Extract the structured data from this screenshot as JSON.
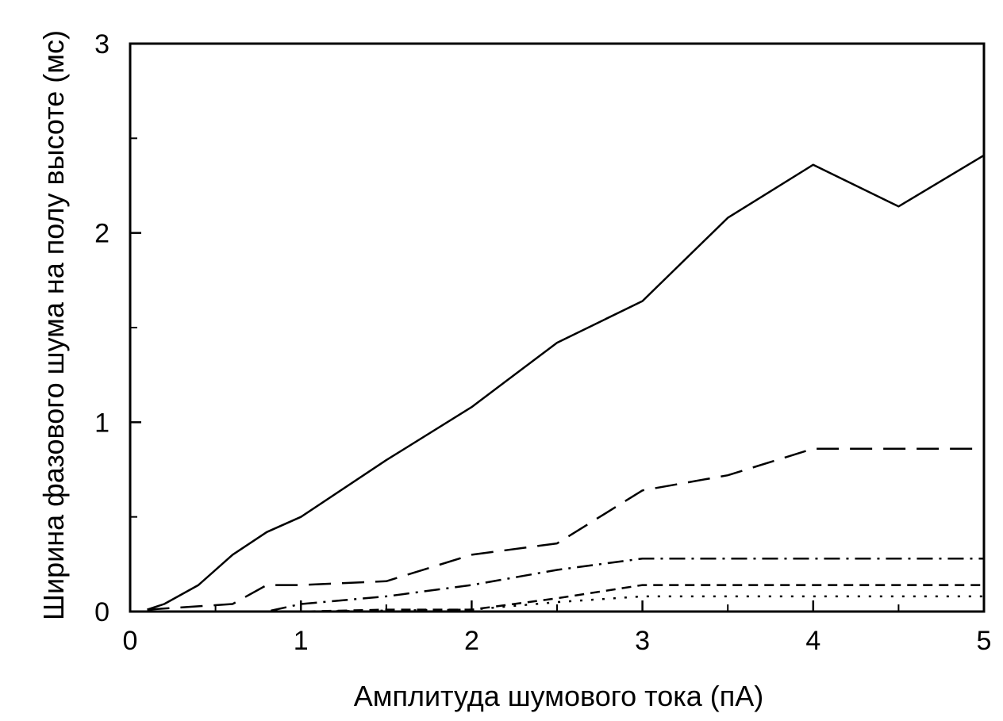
{
  "chart_data": {
    "type": "line",
    "title": "",
    "xlabel": "Амплитуда шумового тока (пА)",
    "ylabel": "Ширина фазового шума на полу высоте (мс)",
    "xlim": [
      0,
      5
    ],
    "ylim": [
      0,
      3
    ],
    "x_ticks": [
      0,
      1,
      2,
      3,
      4,
      5
    ],
    "x_tick_labels": [
      "0",
      "1",
      "2",
      "3",
      "4",
      "5"
    ],
    "x_minor_ticks": [
      0.5,
      1.5,
      2.5,
      3.5,
      4.5
    ],
    "y_ticks": [
      0,
      1,
      2,
      3
    ],
    "y_tick_labels": [
      "0",
      "1",
      "2",
      "3"
    ],
    "y_minor_ticks": [
      0.5,
      1.5,
      2.5
    ],
    "grid": false,
    "legend": "none",
    "series": [
      {
        "style": "solid",
        "x": [
          0.1,
          0.2,
          0.4,
          0.6,
          0.8,
          1.0,
          1.5,
          2.0,
          2.5,
          3.0,
          3.5,
          4.0,
          4.5,
          5.0
        ],
        "y": [
          0.01,
          0.04,
          0.14,
          0.3,
          0.42,
          0.5,
          0.8,
          1.08,
          1.42,
          1.64,
          2.08,
          2.36,
          2.14,
          2.41
        ]
      },
      {
        "style": "long-dash",
        "x": [
          0.1,
          0.6,
          0.8,
          1.0,
          1.5,
          2.0,
          2.5,
          3.0,
          3.5,
          4.0,
          4.5,
          5.0
        ],
        "y": [
          0.01,
          0.04,
          0.14,
          0.14,
          0.16,
          0.3,
          0.36,
          0.64,
          0.72,
          0.86,
          0.86,
          0.86
        ]
      },
      {
        "style": "dash-dot",
        "x": [
          0.1,
          0.8,
          1.0,
          1.5,
          2.0,
          2.5,
          3.0,
          3.5,
          4.0,
          4.5,
          5.0
        ],
        "y": [
          0.0,
          0.0,
          0.04,
          0.08,
          0.14,
          0.22,
          0.28,
          0.28,
          0.28,
          0.28,
          0.28
        ]
      },
      {
        "style": "short-dash",
        "x": [
          0.1,
          1.0,
          1.5,
          2.0,
          2.5,
          3.0,
          3.5,
          4.0,
          4.5,
          5.0
        ],
        "y": [
          0.0,
          0.0,
          0.01,
          0.01,
          0.07,
          0.14,
          0.14,
          0.14,
          0.14,
          0.14
        ]
      },
      {
        "style": "dotted",
        "x": [
          0.1,
          1.0,
          2.0,
          2.5,
          3.0,
          3.5,
          4.0,
          4.5,
          5.0
        ],
        "y": [
          0.0,
          0.0,
          0.01,
          0.05,
          0.08,
          0.08,
          0.08,
          0.08,
          0.08
        ]
      }
    ]
  }
}
